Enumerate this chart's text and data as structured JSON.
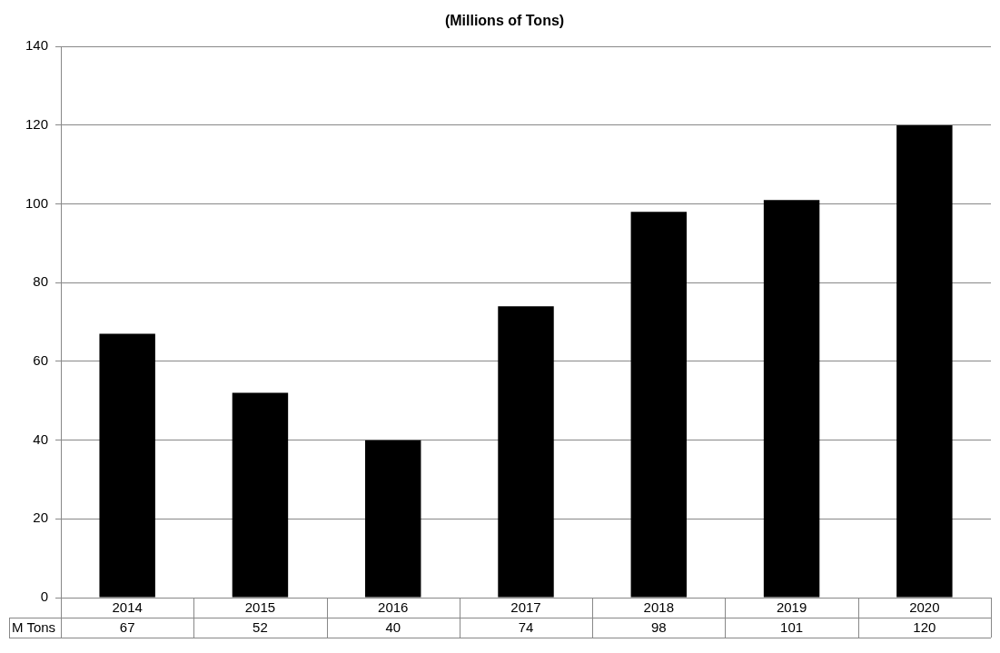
{
  "chart_data": {
    "type": "bar",
    "title": "(Millions of Tons)",
    "categories": [
      "2014",
      "2015",
      "2016",
      "2017",
      "2018",
      "2019",
      "2020"
    ],
    "series": [
      {
        "name": "M Tons",
        "color": "#000000",
        "values": [
          67,
          52,
          40,
          74,
          98,
          101,
          120
        ]
      }
    ],
    "ylim": [
      0,
      140
    ],
    "yticks": [
      0,
      20,
      40,
      60,
      80,
      100,
      120,
      140
    ],
    "grid": "y",
    "legend": false,
    "data_labels": true
  }
}
